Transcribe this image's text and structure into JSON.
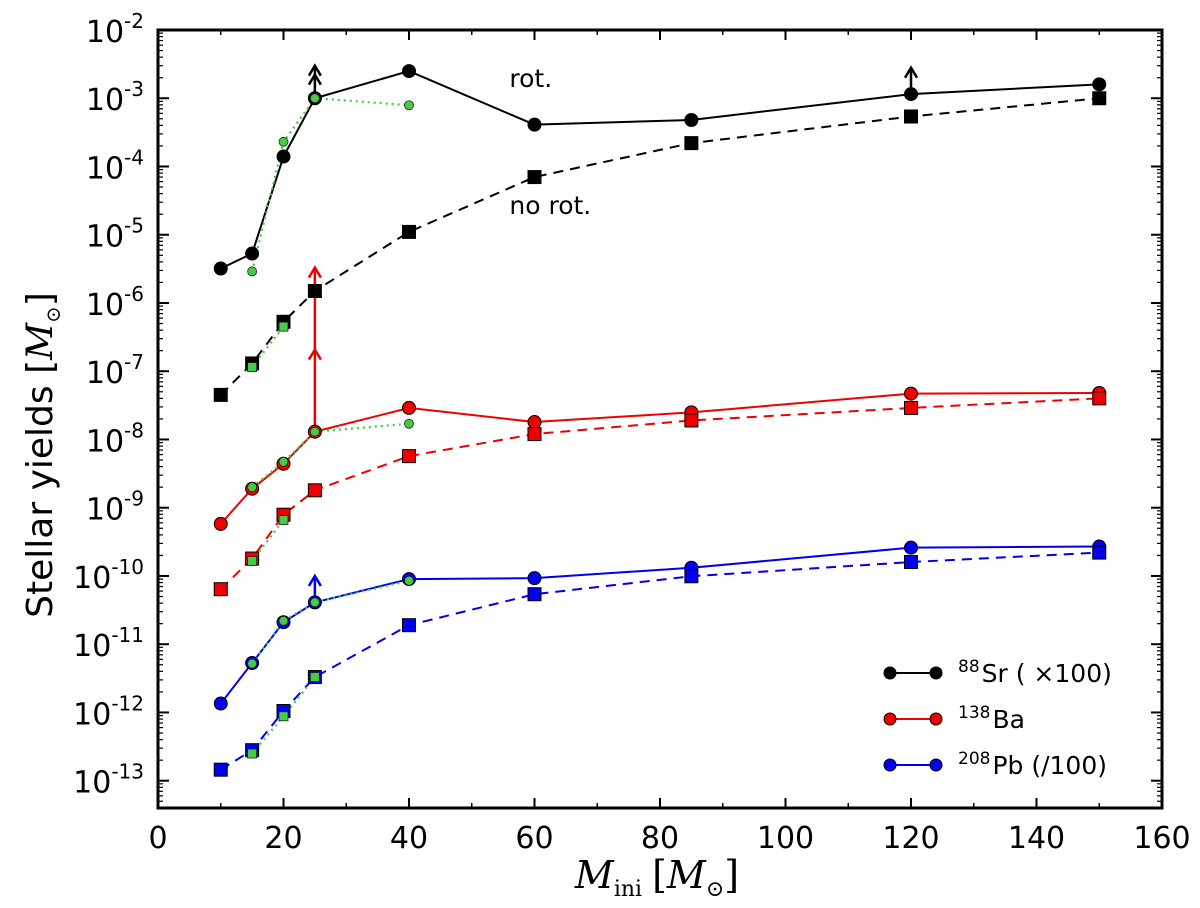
{
  "chart_data": {
    "type": "line",
    "yscale": "log",
    "xlabel": "M_ini [M_⊙]",
    "xlabel_main": "M",
    "xlabel_sub": "ini",
    "xlabel_unit": "[M",
    "xlabel_unit_sub": "⊙",
    "xlabel_close": "]",
    "ylabel": "Stellar yields [M_⊙]",
    "ylabel_text": "Stellar yields [",
    "ylabel_M": "M",
    "ylabel_sun": "⊙",
    "ylabel_close": "]",
    "xlim": [
      0,
      160
    ],
    "xticks": [
      "0",
      "20",
      "40",
      "60",
      "80",
      "100",
      "120",
      "140",
      "160"
    ],
    "yticks": [
      {
        "base": "10",
        "exp": "-13",
        "value": -13
      },
      {
        "base": "10",
        "exp": "-12",
        "value": -12
      },
      {
        "base": "10",
        "exp": "-11",
        "value": -11
      },
      {
        "base": "10",
        "exp": "-10",
        "value": -10
      },
      {
        "base": "10",
        "exp": "-9",
        "value": -9
      },
      {
        "base": "10",
        "exp": "-8",
        "value": -8
      },
      {
        "base": "10",
        "exp": "-7",
        "value": -7
      },
      {
        "base": "10",
        "exp": "-6",
        "value": -6
      },
      {
        "base": "10",
        "exp": "-5",
        "value": -5
      },
      {
        "base": "10",
        "exp": "-4",
        "value": -4
      },
      {
        "base": "10",
        "exp": "-3",
        "value": -3
      },
      {
        "base": "10",
        "exp": "-2",
        "value": -2
      }
    ],
    "ylim_log10": [
      -13.4,
      -2.0
    ],
    "series": [
      {
        "name": "Sr rot",
        "color": "#000000",
        "style": "solid",
        "marker": "circle",
        "x": [
          10,
          15,
          20,
          25,
          40,
          60,
          85,
          120,
          150
        ],
        "y": [
          3.2e-06,
          5.3e-06,
          0.00014,
          0.001,
          0.0025,
          0.00041,
          0.00048,
          0.00115,
          0.0016
        ]
      },
      {
        "name": "Sr no rot",
        "color": "#000000",
        "style": "dashed",
        "marker": "square",
        "x": [
          10,
          15,
          20,
          25,
          40,
          60,
          85,
          120,
          150
        ],
        "y": [
          4.5e-08,
          1.3e-07,
          5.3e-07,
          1.5e-06,
          1.1e-05,
          7e-05,
          0.00022,
          0.00054,
          0.001
        ]
      },
      {
        "name": "Sr rot green",
        "color": "#44cc44",
        "style": "dotted",
        "marker": "circle-small",
        "x": [
          15,
          20,
          25,
          40
        ],
        "y": [
          2.9e-06,
          0.00023,
          0.001,
          0.00079
        ]
      },
      {
        "name": "Sr no rot green",
        "color": "#44cc44",
        "style": "dotted",
        "marker": "square-small",
        "x": [
          15,
          20
        ],
        "y": [
          1.15e-07,
          4.5e-07
        ]
      },
      {
        "name": "Ba rot",
        "color": "#ee0000",
        "style": "solid",
        "marker": "circle",
        "x": [
          10,
          15,
          20,
          25,
          40,
          60,
          85,
          120,
          150
        ],
        "y": [
          5.8e-10,
          1.9e-09,
          4.4e-09,
          1.3e-08,
          2.9e-08,
          1.8e-08,
          2.5e-08,
          4.7e-08,
          4.8e-08
        ]
      },
      {
        "name": "Ba no rot",
        "color": "#ee0000",
        "style": "dashed",
        "marker": "square",
        "x": [
          10,
          15,
          20,
          25,
          40,
          60,
          85,
          120,
          150
        ],
        "y": [
          6.4e-11,
          1.8e-10,
          7.9e-10,
          1.8e-09,
          5.7e-09,
          1.2e-08,
          1.9e-08,
          2.9e-08,
          4e-08
        ]
      },
      {
        "name": "Ba rot green",
        "color": "#44cc44",
        "style": "dotted",
        "marker": "circle-small",
        "x": [
          15,
          20,
          25,
          40
        ],
        "y": [
          2e-09,
          4.7e-09,
          1.3e-08,
          1.7e-08
        ]
      },
      {
        "name": "Ba no rot green",
        "color": "#44cc44",
        "style": "dotted",
        "marker": "square-small",
        "x": [
          15,
          20
        ],
        "y": [
          1.65e-10,
          6.6e-10
        ]
      },
      {
        "name": "Pb rot",
        "color": "#0000ee",
        "style": "solid",
        "marker": "circle",
        "x": [
          10,
          15,
          20,
          25,
          40,
          60,
          85,
          120,
          150
        ],
        "y": [
          1.35e-12,
          5.3e-12,
          2.1e-11,
          4.1e-11,
          9e-11,
          9.3e-11,
          1.32e-10,
          2.6e-10,
          2.7e-10
        ]
      },
      {
        "name": "Pb no rot",
        "color": "#0000ee",
        "style": "dashed",
        "marker": "square",
        "x": [
          10,
          15,
          20,
          25,
          40,
          60,
          85,
          120,
          150
        ],
        "y": [
          1.45e-13,
          2.8e-13,
          1.05e-12,
          3.3e-12,
          1.9e-11,
          5.4e-11,
          9.9e-11,
          1.6e-10,
          2.2e-10
        ]
      },
      {
        "name": "Pb rot green",
        "color": "#44cc44",
        "style": "dotted",
        "marker": "circle-small",
        "x": [
          15,
          20,
          25,
          40
        ],
        "y": [
          5.2e-12,
          2.2e-11,
          4.1e-11,
          8.5e-11
        ]
      },
      {
        "name": "Pb no rot green",
        "color": "#44cc44",
        "style": "dotted",
        "marker": "square-small",
        "x": [
          15,
          20,
          25
        ],
        "y": [
          2.5e-13,
          8.8e-13,
          3.3e-12
        ]
      }
    ],
    "arrows": [
      {
        "color": "#000000",
        "x": 25,
        "from": 0.001,
        "to": 0.003,
        "double": true
      },
      {
        "color": "#000000",
        "x": 120,
        "from": 0.00115,
        "to": 0.0028,
        "double": false
      },
      {
        "color": "#ee0000",
        "x": 25,
        "from": 1.3e-08,
        "to": 3.3e-06,
        "double": true
      },
      {
        "color": "#0000ee",
        "x": 25,
        "from": 4.1e-11,
        "to": 1e-10,
        "double": false
      },
      {
        "color": "#ee0000",
        "x": 120,
        "from": 2.9e-08,
        "to": 3.3e-08,
        "double": false
      },
      {
        "color": "#0000ee",
        "x": 120,
        "from": 1.6e-10,
        "to": 1.8e-10,
        "double": false
      }
    ],
    "annotations": [
      {
        "text": "rot.",
        "x": 56,
        "y": 0.00145
      },
      {
        "text": "no rot.",
        "x": 56,
        "y": 2e-05
      }
    ],
    "legend": {
      "placement": "bottom-right",
      "entries": [
        {
          "sup": "88",
          "label": "Sr ( ×100)",
          "color": "#000000"
        },
        {
          "sup": "138",
          "label": "Ba",
          "color": "#ee0000"
        },
        {
          "sup": "208",
          "label": "Pb (/100)",
          "color": "#0000ee"
        }
      ]
    }
  }
}
